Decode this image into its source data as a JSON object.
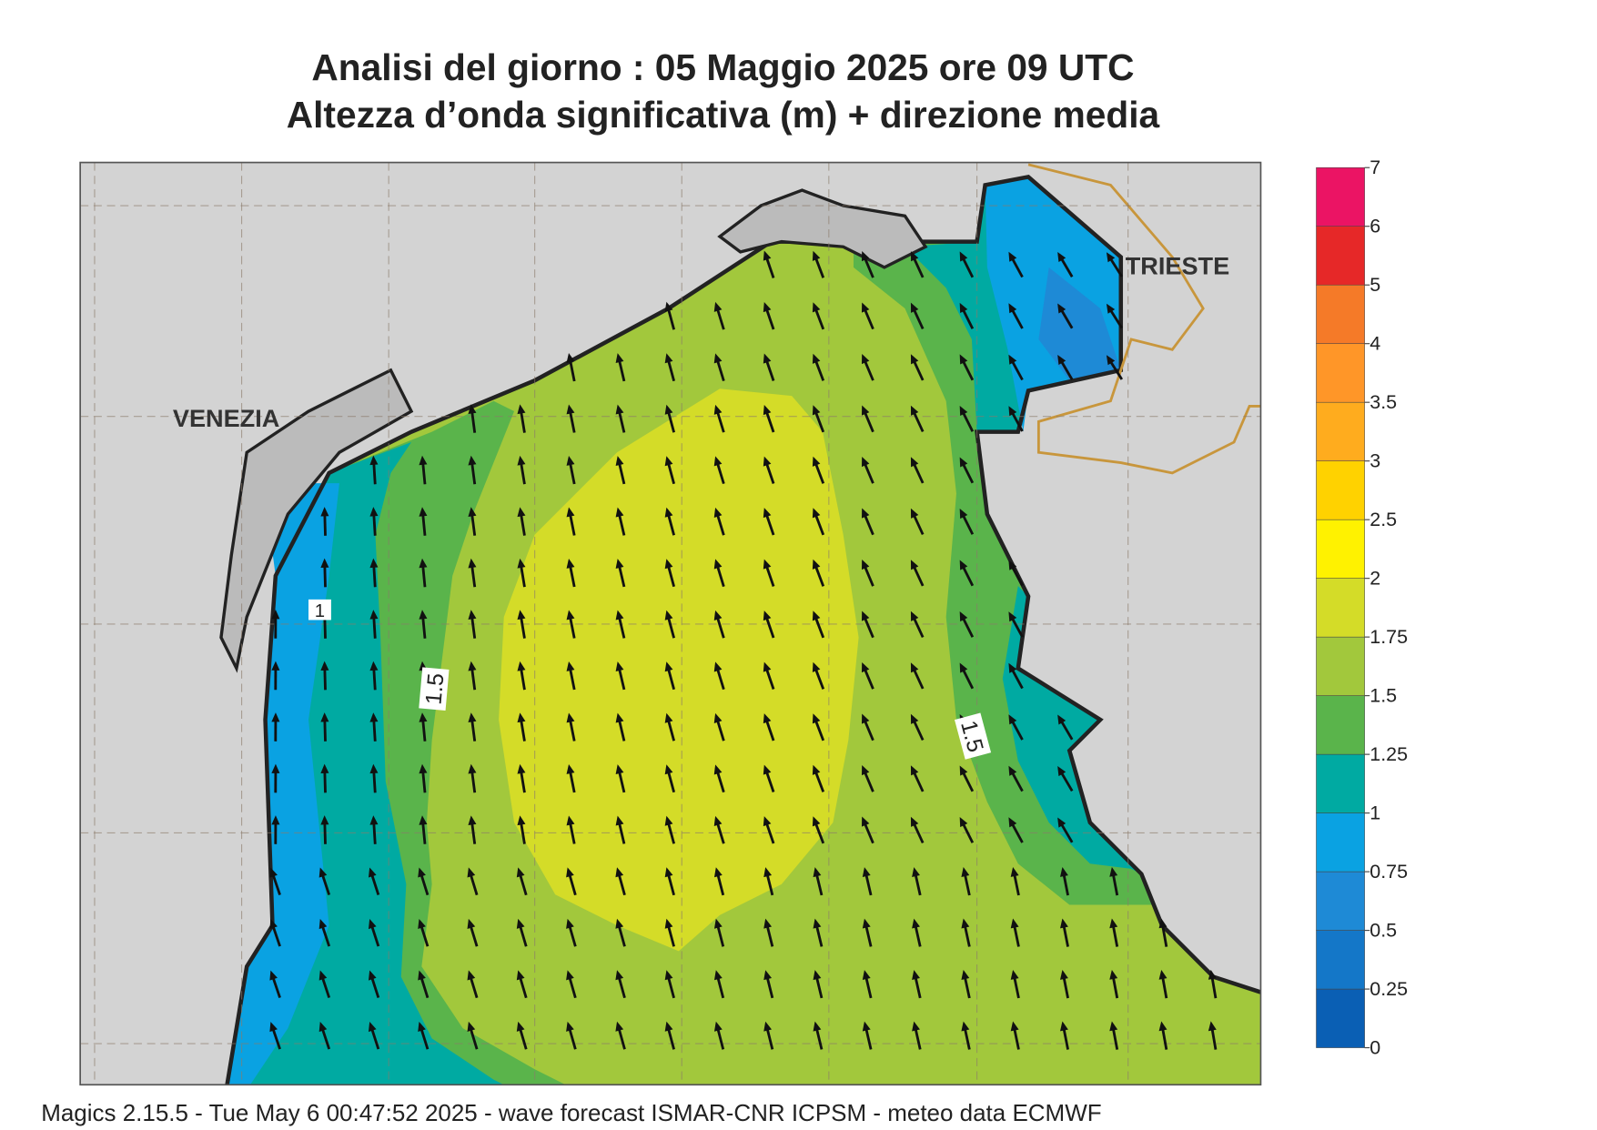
{
  "header": {
    "title": "Analisi del giorno :  05   Maggio  2025   ore 09 UTC",
    "subtitle": "Altezza d’onda significativa (m) + direzione media"
  },
  "map": {
    "places": [
      "VENEZIA",
      "TRIESTE"
    ],
    "contour_labels": [
      "1.5",
      "1.5",
      "1"
    ]
  },
  "colorbar": {
    "ticks": [
      0,
      0.25,
      0.5,
      0.75,
      1,
      1.25,
      1.5,
      1.75,
      2,
      2.5,
      3,
      3.5,
      4,
      5,
      6,
      7
    ],
    "colors": [
      "#0a5fb4",
      "#1477c8",
      "#1e8ad6",
      "#0aa2e2",
      "#00aaa2",
      "#5ab44b",
      "#a2c83c",
      "#d4dc28",
      "#fff200",
      "#ffd200",
      "#ffac1e",
      "#ff9628",
      "#f57a28",
      "#e62828",
      "#eb1464"
    ]
  },
  "footer": "Magics 2.15.5 - Tue May  6 00:47:52 2025 - wave forecast  ISMAR-CNR  ICPSM - meteo data    ECMWF"
}
